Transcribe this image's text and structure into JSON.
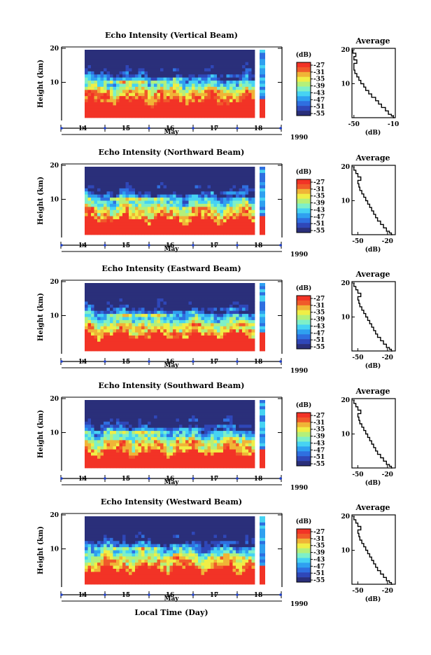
{
  "figure": {
    "bottom_label": "Local Time (Day)",
    "colors": [
      "#2a2f7a",
      "#2f47b8",
      "#2f6fe0",
      "#2fa0f0",
      "#46d3f3",
      "#7ef0c8",
      "#b4f07a",
      "#f0ee46",
      "#f0b437",
      "#f05a2a",
      "#f23326"
    ]
  },
  "chart_data": [
    {
      "type": "heatmap",
      "title": "Echo Intensity (Vertical Beam)",
      "ylabel": "Height (km)",
      "xlabel": "May",
      "year_label": "1990",
      "x_tick_labels": [
        "14",
        "15",
        "16",
        "17",
        "18"
      ],
      "y_tick_labels": [
        "10",
        "20"
      ],
      "ylim": [
        0,
        20
      ],
      "colorbar": {
        "unit": "(dB)",
        "levels": [
          "-27",
          "-31",
          "-35",
          "-39",
          "-43",
          "-47",
          "-51",
          "-55"
        ]
      },
      "average_profile": {
        "title": "Average",
        "xlabel": "(dB)",
        "xticks": [
          "-50",
          "-10"
        ],
        "yticks": [
          "10",
          "20"
        ],
        "xlim": [
          -52,
          -8
        ],
        "x": [
          -51,
          -48,
          -50,
          -47,
          -50,
          -50,
          -49,
          -47,
          -45,
          -43,
          -40,
          -38,
          -35,
          -32,
          -28,
          -25,
          -22,
          -18,
          -15,
          -12,
          -10,
          -9
        ],
        "y": [
          20,
          19,
          18,
          17,
          16,
          15,
          14,
          13,
          12,
          11,
          10,
          9,
          8,
          7,
          6,
          5,
          4,
          3,
          2,
          1,
          0.5,
          0
        ]
      }
    },
    {
      "type": "heatmap",
      "title": "Echo Intensity (Northward Beam)",
      "ylabel": "Height (km)",
      "xlabel": "May",
      "year_label": "1990",
      "x_tick_labels": [
        "14",
        "15",
        "16",
        "17",
        "18"
      ],
      "y_tick_labels": [
        "10",
        "20"
      ],
      "ylim": [
        0,
        20
      ],
      "colorbar": {
        "unit": "(dB)",
        "levels": [
          "-27",
          "-31",
          "-35",
          "-39",
          "-43",
          "-47",
          "-51",
          "-55"
        ]
      },
      "average_profile": {
        "title": "Average",
        "xlabel": "(dB)",
        "xticks": [
          "-50",
          "-20"
        ],
        "yticks": [
          "10",
          "20"
        ],
        "xlim": [
          -56,
          -12
        ],
        "x": [
          -54,
          -52,
          -50,
          -47,
          -50,
          -49,
          -48,
          -46,
          -44,
          -42,
          -40,
          -38,
          -36,
          -34,
          -32,
          -30,
          -27,
          -24,
          -21,
          -18,
          -16,
          -15
        ],
        "y": [
          20,
          19,
          18,
          17,
          16,
          15,
          14,
          13,
          12,
          11,
          10,
          9,
          8,
          7,
          6,
          5,
          4,
          3,
          2,
          1,
          0.5,
          0
        ]
      }
    },
    {
      "type": "heatmap",
      "title": "Echo Intensity (Eastward Beam)",
      "ylabel": "Height (km)",
      "xlabel": "May",
      "year_label": "1990",
      "x_tick_labels": [
        "14",
        "15",
        "16",
        "17",
        "18"
      ],
      "y_tick_labels": [
        "10",
        "20"
      ],
      "ylim": [
        0,
        20
      ],
      "colorbar": {
        "unit": "(dB)",
        "levels": [
          "-27",
          "-31",
          "-35",
          "-39",
          "-43",
          "-47",
          "-51",
          "-55"
        ]
      },
      "average_profile": {
        "title": "Average",
        "xlabel": "(dB)",
        "xticks": [
          "-50",
          "-20"
        ],
        "yticks": [
          "10",
          "20"
        ],
        "xlim": [
          -56,
          -12
        ],
        "x": [
          -54,
          -52,
          -50,
          -47,
          -50,
          -49,
          -48,
          -46,
          -44,
          -42,
          -40,
          -38,
          -36,
          -34,
          -32,
          -30,
          -27,
          -24,
          -21,
          -18,
          -16,
          -15
        ],
        "y": [
          20,
          19,
          18,
          17,
          16,
          15,
          14,
          13,
          12,
          11,
          10,
          9,
          8,
          7,
          6,
          5,
          4,
          3,
          2,
          1,
          0.5,
          0
        ]
      }
    },
    {
      "type": "heatmap",
      "title": "Echo Intensity (Southward Beam)",
      "ylabel": "Height (km)",
      "xlabel": "May",
      "year_label": "1990",
      "x_tick_labels": [
        "14",
        "15",
        "16",
        "17",
        "18"
      ],
      "y_tick_labels": [
        "10",
        "20"
      ],
      "ylim": [
        0,
        20
      ],
      "colorbar": {
        "unit": "(dB)",
        "levels": [
          "-27",
          "-31",
          "-35",
          "-39",
          "-43",
          "-47",
          "-51",
          "-55"
        ]
      },
      "average_profile": {
        "title": "Average",
        "xlabel": "(dB)",
        "xticks": [
          "-50",
          "-20"
        ],
        "yticks": [
          "10",
          "20"
        ],
        "xlim": [
          -56,
          -12
        ],
        "x": [
          -54,
          -52,
          -50,
          -47,
          -50,
          -49,
          -48,
          -46,
          -44,
          -42,
          -40,
          -38,
          -36,
          -34,
          -32,
          -30,
          -27,
          -24,
          -21,
          -18,
          -16,
          -15
        ],
        "y": [
          20,
          19,
          18,
          17,
          16,
          15,
          14,
          13,
          12,
          11,
          10,
          9,
          8,
          7,
          6,
          5,
          4,
          3,
          2,
          1,
          0.5,
          0
        ]
      }
    },
    {
      "type": "heatmap",
      "title": "Echo Intensity (Westward Beam)",
      "ylabel": "Height (km)",
      "xlabel": "May",
      "year_label": "1990",
      "x_tick_labels": [
        "14",
        "15",
        "16",
        "17",
        "18"
      ],
      "y_tick_labels": [
        "10",
        "20"
      ],
      "ylim": [
        0,
        20
      ],
      "colorbar": {
        "unit": "(dB)",
        "levels": [
          "-27",
          "-31",
          "-35",
          "-39",
          "-43",
          "-47",
          "-51",
          "-55"
        ]
      },
      "average_profile": {
        "title": "Average",
        "xlabel": "(dB)",
        "xticks": [
          "-50",
          "-20"
        ],
        "yticks": [
          "10",
          "20"
        ],
        "xlim": [
          -56,
          -12
        ],
        "x": [
          -54,
          -52,
          -50,
          -47,
          -50,
          -49,
          -48,
          -46,
          -44,
          -42,
          -40,
          -38,
          -36,
          -34,
          -32,
          -30,
          -27,
          -24,
          -21,
          -18,
          -16,
          -15
        ],
        "y": [
          20,
          19,
          18,
          17,
          16,
          15,
          14,
          13,
          12,
          11,
          10,
          9,
          8,
          7,
          6,
          5,
          4,
          3,
          2,
          1,
          0.5,
          0
        ]
      }
    }
  ]
}
